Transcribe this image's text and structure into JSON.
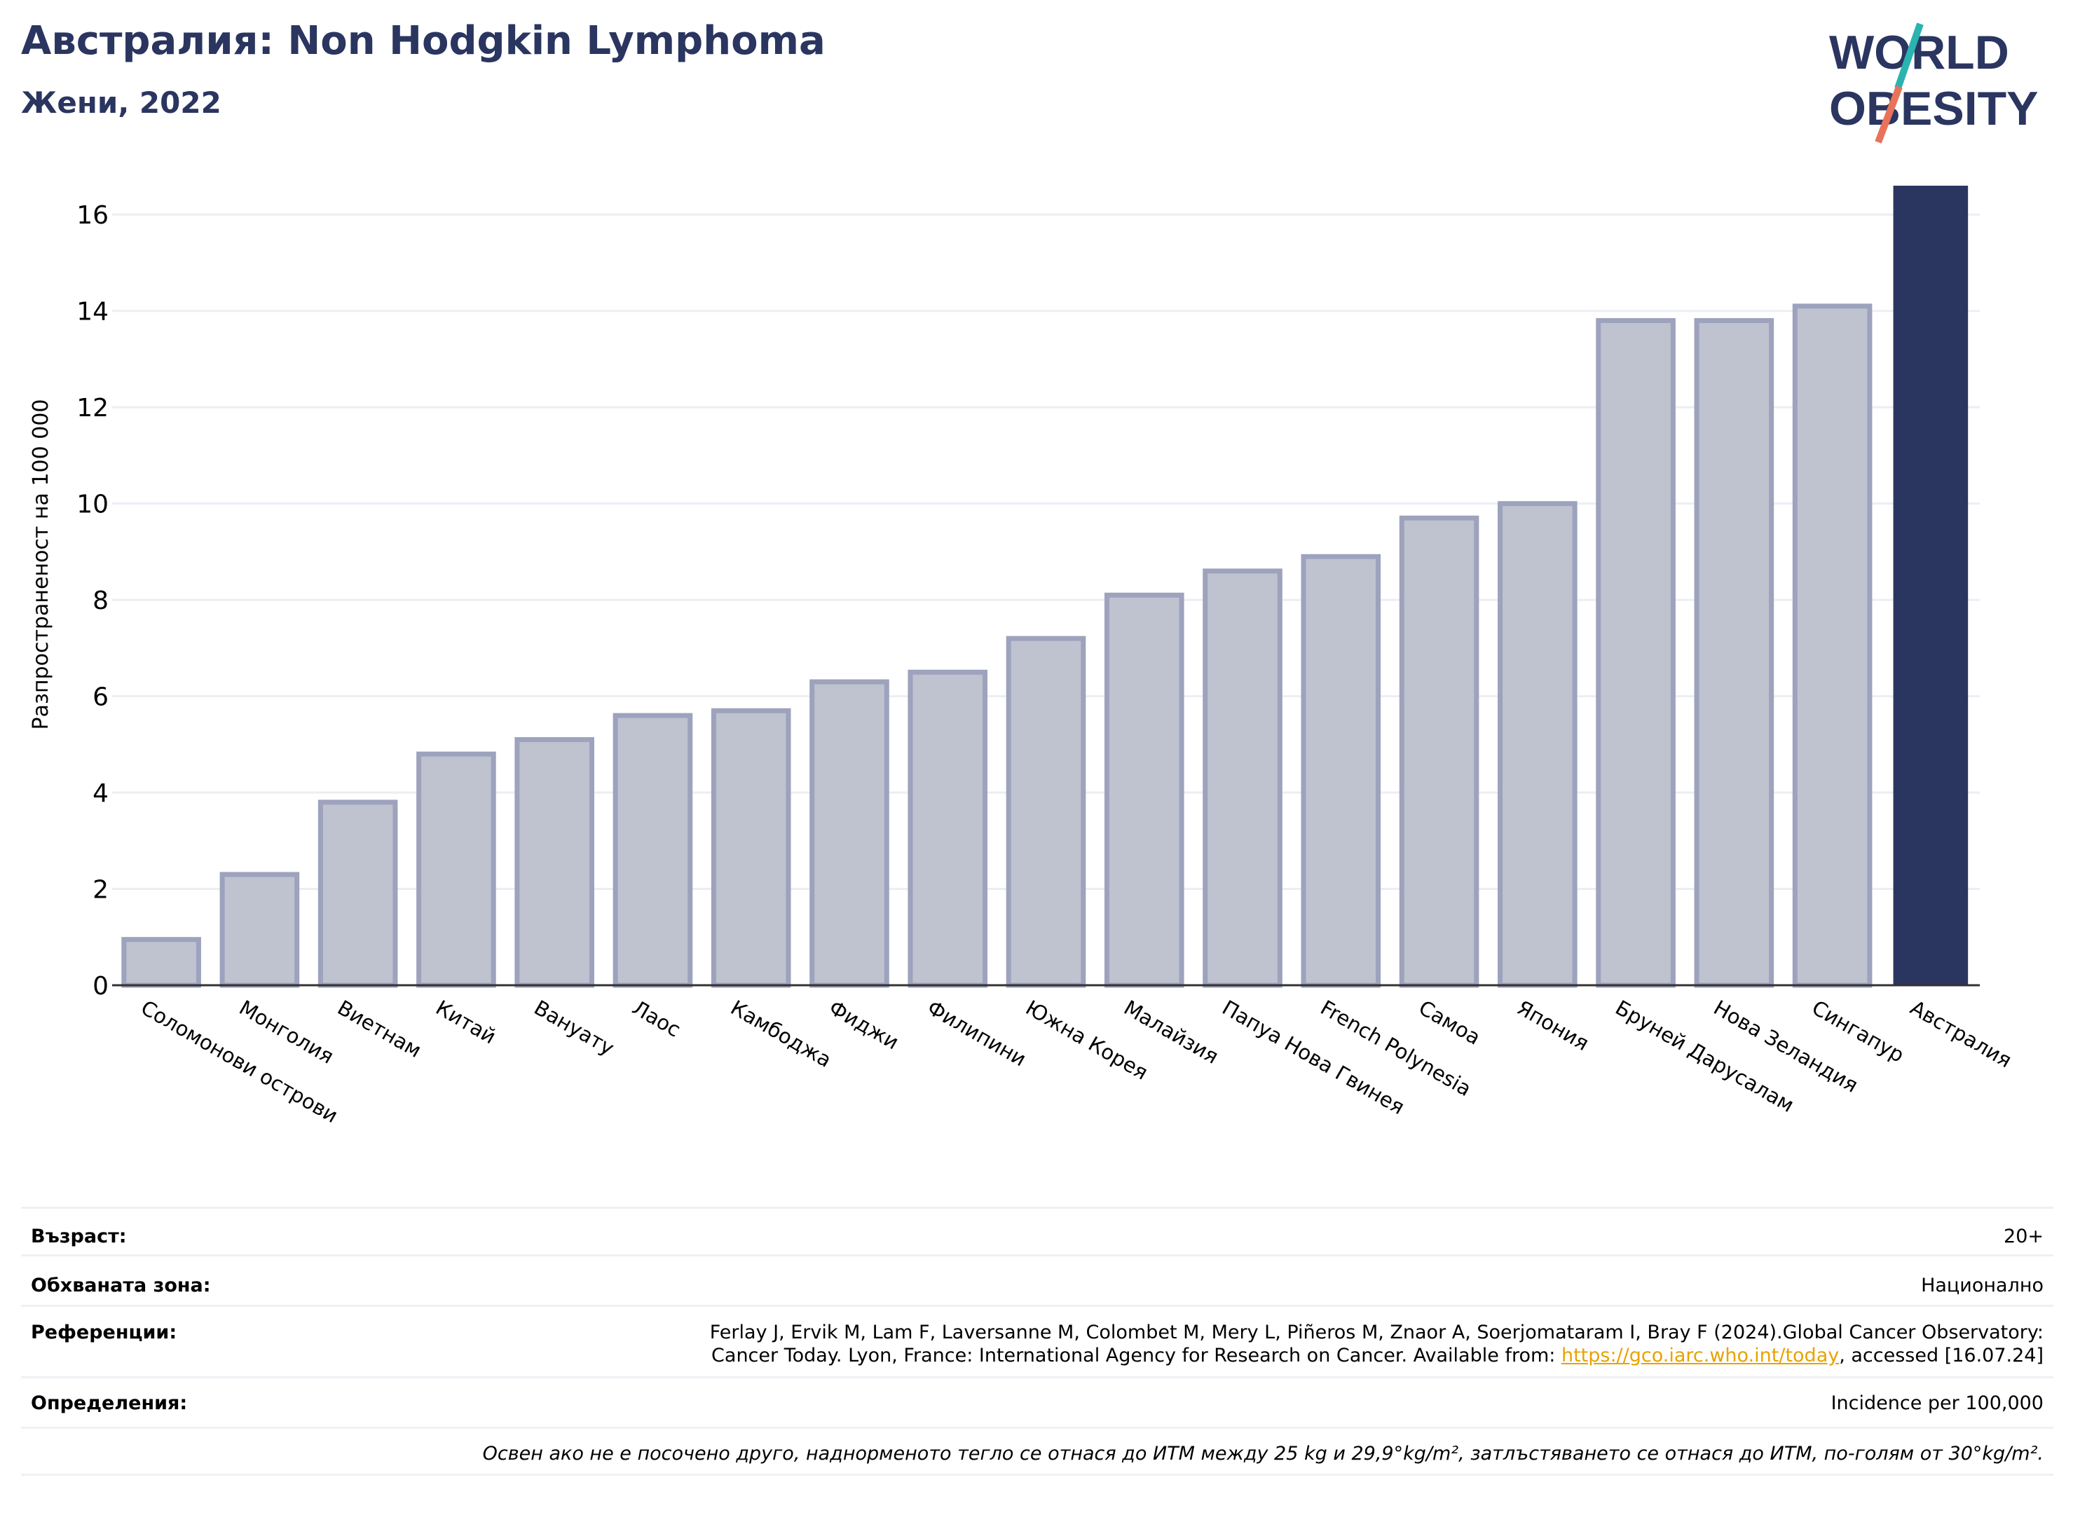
{
  "header": {
    "title": "Австралия: Non Hodgkin Lymphoma",
    "subtitle": "Жени, 2022"
  },
  "logo": {
    "line1": "WORLD",
    "line2": "OBESITY",
    "colors": {
      "text": "#2a3560",
      "slash_top": "#2ab3b1",
      "slash_bottom": "#e8735a"
    }
  },
  "chart_data": {
    "type": "bar",
    "title": "",
    "xlabel": "",
    "ylabel": "Разпространеност  на 100 000",
    "ylim": [
      0,
      16.6
    ],
    "yticks": [
      0,
      2,
      4,
      6,
      8,
      10,
      12,
      14,
      16
    ],
    "grid": true,
    "categories": [
      "Соломонови острови",
      "Монголия",
      "Виетнам",
      "Китай",
      "Вануату",
      "Лаос",
      "Камбоджа",
      "Фиджи",
      "Филипини",
      "Южна Корея",
      "Малайзия",
      "Папуа Нова Гвинея",
      "French Polynesia",
      "Самоа",
      "Япония",
      "Бруней Дарусалам",
      "Нова Зеландия",
      "Сингапур",
      "Австралия"
    ],
    "values": [
      0.95,
      2.3,
      3.8,
      4.8,
      5.1,
      5.6,
      5.7,
      6.3,
      6.5,
      7.2,
      8.1,
      8.6,
      8.9,
      9.7,
      10.0,
      13.8,
      13.8,
      14.1,
      16.6
    ],
    "highlight": "Австралия",
    "colors": {
      "bar": "#bfc2cf",
      "bar_edge": "#9da2bd",
      "highlight": "#2a3560",
      "grid": "#eceef3",
      "axis": "#333333"
    }
  },
  "info": {
    "age_label": "Възраст:",
    "age_value": "20+",
    "area_label": "Обхваната зона:",
    "area_value": "Национално",
    "ref_label": "Референции:",
    "ref_line1": "Ferlay J, Ervik M, Lam F, Laversanne M, Colombet M, Mery L, Piñeros M, Znaor A, Soerjomataram I, Bray F (2024).Global Cancer Observatory:",
    "ref_line2_pre": "Cancer Today. Lyon, France: International Agency for Research on Cancer. Available from: ",
    "ref_link": "https://gco.iarc.who.int/today",
    "ref_line2_post": ", accessed [16.07.24]",
    "def_label": "Определения:",
    "def_value": "Incidence per 100,000",
    "note": "Освен ако не е посочено друго, наднорменото тегло се отнася до ИТМ между 25 kg и 29,9°kg/m², затлъстяването се отнася до ИТМ, по-голям от 30°kg/m²."
  }
}
